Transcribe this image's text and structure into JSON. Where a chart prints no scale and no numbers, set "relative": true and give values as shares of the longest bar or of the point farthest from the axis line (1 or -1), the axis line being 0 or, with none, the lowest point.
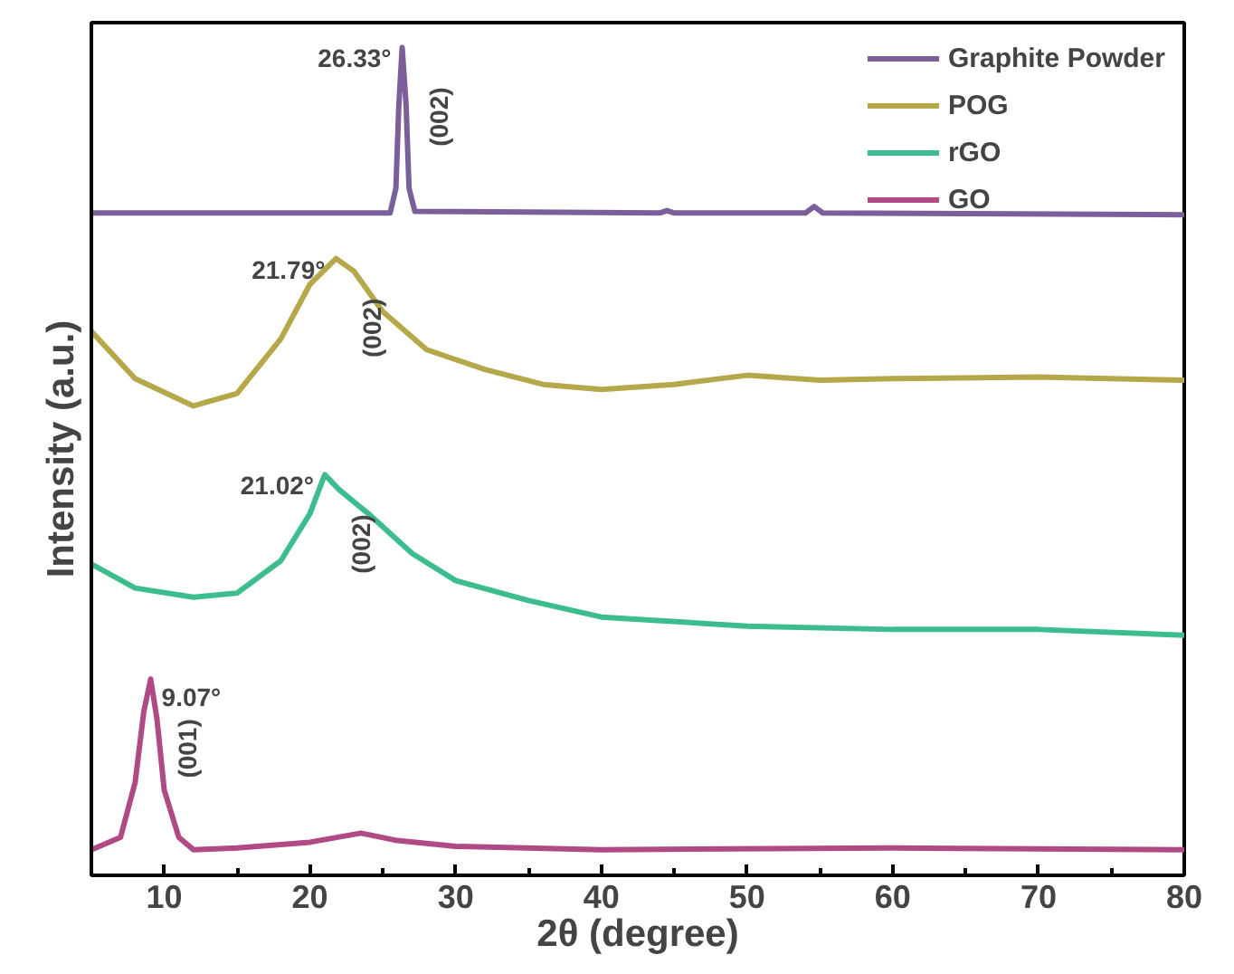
{
  "chart_data": {
    "type": "line",
    "xlabel": "2θ (degree)",
    "ylabel": "Intensity (a.u.)",
    "relative": true,
    "xlim": [
      5,
      80
    ],
    "xticks": [
      10,
      20,
      30,
      40,
      50,
      60,
      70,
      80
    ],
    "grid": false,
    "legend": "top right",
    "marker": "none",
    "line_style": "solid",
    "series": [
      {
        "name": "Graphite Powder",
        "color": "#7a5f9b",
        "x": [
          5,
          25.5,
          25.9,
          26.1,
          26.33,
          26.6,
          26.8,
          27.2,
          44,
          44.5,
          45,
          54,
          54.6,
          55.2,
          80
        ],
        "values": [
          0.8,
          0.8,
          0.83,
          0.93,
          1.0,
          0.93,
          0.83,
          0.802,
          0.8,
          0.803,
          0.8,
          0.8,
          0.808,
          0.8,
          0.798
        ]
      },
      {
        "name": "POG",
        "color": "#b5a84a",
        "x": [
          5,
          8,
          12,
          15,
          18,
          20,
          21.79,
          23,
          25,
          28,
          32,
          36,
          40,
          45,
          50,
          55,
          60,
          70,
          80
        ],
        "values": [
          0.657,
          0.6,
          0.567,
          0.582,
          0.648,
          0.714,
          0.745,
          0.73,
          0.681,
          0.635,
          0.611,
          0.593,
          0.587,
          0.593,
          0.604,
          0.598,
          0.6,
          0.602,
          0.598
        ]
      },
      {
        "name": "rGO",
        "color": "#3dbd8d",
        "x": [
          5,
          8,
          12,
          15,
          18,
          20,
          21.02,
          22,
          24,
          27,
          30,
          35,
          40,
          50,
          60,
          70,
          80
        ],
        "values": [
          0.376,
          0.347,
          0.336,
          0.341,
          0.38,
          0.437,
          0.484,
          0.466,
          0.437,
          0.389,
          0.356,
          0.332,
          0.312,
          0.301,
          0.297,
          0.297,
          0.29
        ]
      },
      {
        "name": "GO",
        "color": "#b04a85",
        "x": [
          5,
          7,
          8,
          8.6,
          9.07,
          9.5,
          10,
          11,
          12,
          15,
          20,
          23.5,
          26,
          30,
          40,
          60,
          80
        ],
        "values": [
          0.031,
          0.046,
          0.112,
          0.198,
          0.237,
          0.189,
          0.103,
          0.046,
          0.031,
          0.033,
          0.04,
          0.051,
          0.042,
          0.035,
          0.031,
          0.033,
          0.031
        ]
      }
    ],
    "annotations": [
      {
        "text": "26.33°",
        "x": 26.33,
        "y": 1.0
      },
      "(002)",
      {
        "text": "21.79°",
        "x": 21.79,
        "y": 0.745
      },
      "(002)",
      {
        "text": "21.02°",
        "x": 21.02,
        "y": 0.484
      },
      "(002)",
      {
        "text": "9.07°",
        "x": 9.07,
        "y": 0.237
      },
      "(001)"
    ]
  }
}
